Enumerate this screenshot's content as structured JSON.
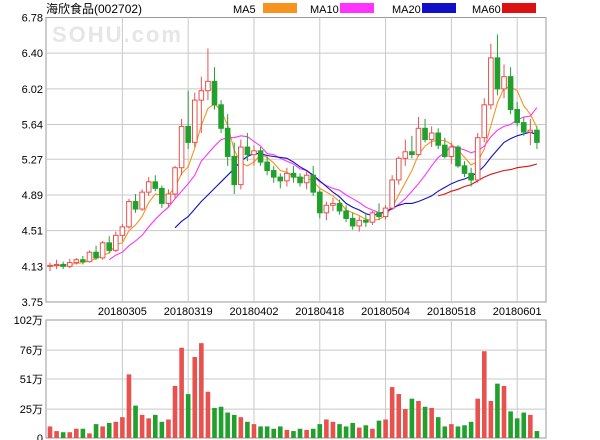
{
  "title": "海欣食品(002702)",
  "watermark": "SOHU.com",
  "colors": {
    "up": "#e8524e",
    "down": "#22a02e",
    "grid": "#c8c8c8",
    "frame": "#9a9a9a",
    "ma5": "#f7931e",
    "ma10": "#ff33ff",
    "ma20": "#1010c8",
    "ma60": "#dd1111"
  },
  "legend": [
    "MA5",
    "MA10",
    "MA20",
    "MA60"
  ],
  "price_axis": {
    "ticks": [
      "6.78",
      "6.40",
      "6.02",
      "5.64",
      "5.27",
      "4.89",
      "4.51",
      "4.13",
      "3.75"
    ],
    "min": 3.75,
    "max": 6.78
  },
  "date_labels": [
    {
      "label": "20180305",
      "index": 11
    },
    {
      "label": "20180319",
      "index": 21
    },
    {
      "label": "20180402",
      "index": 31
    },
    {
      "label": "20180418",
      "index": 41
    },
    {
      "label": "20180504",
      "index": 51
    },
    {
      "label": "20180518",
      "index": 61
    },
    {
      "label": "20180601",
      "index": 71
    }
  ],
  "volume_axis": {
    "ticks": [
      "102万",
      "76万",
      "51万",
      "25万",
      "0"
    ],
    "max": 102,
    "unit": "万"
  },
  "chart_data": {
    "type": "candlestick",
    "ohlc": [
      [
        4.13,
        4.17,
        4.08,
        4.14
      ],
      [
        4.14,
        4.2,
        4.1,
        4.15
      ],
      [
        4.15,
        4.18,
        4.1,
        4.13
      ],
      [
        4.13,
        4.21,
        4.11,
        4.17
      ],
      [
        4.17,
        4.22,
        4.15,
        4.2
      ],
      [
        4.2,
        4.24,
        4.15,
        4.18
      ],
      [
        4.18,
        4.3,
        4.17,
        4.28
      ],
      [
        4.28,
        4.35,
        4.2,
        4.22
      ],
      [
        4.22,
        4.4,
        4.2,
        4.38
      ],
      [
        4.38,
        4.45,
        4.27,
        4.3
      ],
      [
        4.3,
        4.5,
        4.28,
        4.46
      ],
      [
        4.46,
        4.58,
        4.4,
        4.55
      ],
      [
        4.55,
        4.85,
        4.53,
        4.82
      ],
      [
        4.82,
        4.9,
        4.7,
        4.74
      ],
      [
        4.74,
        4.95,
        4.72,
        4.92
      ],
      [
        4.92,
        5.08,
        4.88,
        5.03
      ],
      [
        5.03,
        5.1,
        4.93,
        4.96
      ],
      [
        4.96,
        4.99,
        4.75,
        4.8
      ],
      [
        4.8,
        4.95,
        4.76,
        4.9
      ],
      [
        4.9,
        5.2,
        4.85,
        5.18
      ],
      [
        5.18,
        5.7,
        5.1,
        5.62
      ],
      [
        5.62,
        6.0,
        5.38,
        5.45
      ],
      [
        5.45,
        5.98,
        5.4,
        5.9
      ],
      [
        5.9,
        6.15,
        5.55,
        6.0
      ],
      [
        6.0,
        6.45,
        5.9,
        6.1
      ],
      [
        6.1,
        6.25,
        5.8,
        5.85
      ],
      [
        5.85,
        5.9,
        5.55,
        5.6
      ],
      [
        5.6,
        5.75,
        5.2,
        5.3
      ],
      [
        5.3,
        5.45,
        4.9,
        5.0
      ],
      [
        5.0,
        5.48,
        4.95,
        5.4
      ],
      [
        5.4,
        5.55,
        5.25,
        5.32
      ],
      [
        5.32,
        5.42,
        5.2,
        5.36
      ],
      [
        5.36,
        5.4,
        5.2,
        5.24
      ],
      [
        5.24,
        5.3,
        5.1,
        5.15
      ],
      [
        5.15,
        5.2,
        5.02,
        5.08
      ],
      [
        5.08,
        5.12,
        4.96,
        5.04
      ],
      [
        5.04,
        5.18,
        4.98,
        5.12
      ],
      [
        5.12,
        5.2,
        5.02,
        5.08
      ],
      [
        5.08,
        5.12,
        4.98,
        5.02
      ],
      [
        5.02,
        5.14,
        4.95,
        5.1
      ],
      [
        5.1,
        5.2,
        4.88,
        4.92
      ],
      [
        4.92,
        4.95,
        4.64,
        4.7
      ],
      [
        4.7,
        4.82,
        4.62,
        4.78
      ],
      [
        4.78,
        4.86,
        4.72,
        4.8
      ],
      [
        4.8,
        4.84,
        4.68,
        4.72
      ],
      [
        4.72,
        4.78,
        4.6,
        4.64
      ],
      [
        4.64,
        4.7,
        4.52,
        4.56
      ],
      [
        4.56,
        4.66,
        4.5,
        4.62
      ],
      [
        4.62,
        4.7,
        4.55,
        4.6
      ],
      [
        4.6,
        4.72,
        4.57,
        4.7
      ],
      [
        4.7,
        4.8,
        4.62,
        4.66
      ],
      [
        4.66,
        4.78,
        4.63,
        4.75
      ],
      [
        4.75,
        5.1,
        4.73,
        5.05
      ],
      [
        5.05,
        5.3,
        5.0,
        5.28
      ],
      [
        5.28,
        5.48,
        5.2,
        5.35
      ],
      [
        5.35,
        5.52,
        5.28,
        5.32
      ],
      [
        5.32,
        5.72,
        5.3,
        5.6
      ],
      [
        5.6,
        5.7,
        5.45,
        5.48
      ],
      [
        5.48,
        5.62,
        5.4,
        5.55
      ],
      [
        5.55,
        5.6,
        5.38,
        5.42
      ],
      [
        5.42,
        5.5,
        5.28,
        5.3
      ],
      [
        5.3,
        5.45,
        5.22,
        5.4
      ],
      [
        5.4,
        5.42,
        5.18,
        5.2
      ],
      [
        5.2,
        5.25,
        5.08,
        5.12
      ],
      [
        5.12,
        5.18,
        4.98,
        5.05
      ],
      [
        5.05,
        5.55,
        5.02,
        5.5
      ],
      [
        5.5,
        5.92,
        5.45,
        5.85
      ],
      [
        5.85,
        6.5,
        5.8,
        6.35
      ],
      [
        6.35,
        6.6,
        5.95,
        6.02
      ],
      [
        6.02,
        6.28,
        5.92,
        6.15
      ],
      [
        6.15,
        6.25,
        5.75,
        5.8
      ],
      [
        5.8,
        5.88,
        5.62,
        5.66
      ],
      [
        5.66,
        5.72,
        5.52,
        5.56
      ],
      [
        5.56,
        5.7,
        5.42,
        5.58
      ],
      [
        5.58,
        5.62,
        5.38,
        5.45
      ]
    ],
    "volume": [
      10,
      6,
      5,
      5,
      8,
      8,
      4,
      12,
      10,
      13,
      14,
      18,
      55,
      28,
      20,
      17,
      20,
      14,
      16,
      45,
      78,
      38,
      70,
      82,
      40,
      26,
      27,
      22,
      20,
      18,
      14,
      12,
      10,
      10,
      8,
      10,
      7,
      6,
      8,
      7,
      8,
      12,
      16,
      14,
      12,
      10,
      13,
      9,
      11,
      8,
      15,
      16,
      44,
      38,
      25,
      34,
      32,
      27,
      26,
      18,
      10,
      12,
      10,
      11,
      14,
      34,
      75,
      32,
      47,
      45,
      23,
      17,
      22,
      20,
      6
    ],
    "ma": [
      {
        "name": "MA5",
        "values": [
          4.13,
          4.14,
          4.14,
          4.15,
          4.16,
          4.17,
          4.19,
          4.21,
          4.25,
          4.27,
          4.36,
          4.38,
          4.51,
          4.57,
          4.66,
          4.81,
          4.9,
          4.89,
          4.89,
          4.97,
          5.12,
          5.19,
          5.39,
          5.63,
          5.81,
          5.86,
          5.79,
          5.63,
          5.37,
          5.23,
          5.2,
          5.24,
          5.32,
          5.29,
          5.23,
          5.15,
          5.13,
          5.09,
          5.07,
          5.07,
          5.04,
          4.96,
          4.92,
          4.88,
          4.82,
          4.73,
          4.7,
          4.67,
          4.63,
          4.62,
          4.63,
          4.67,
          4.76,
          4.89,
          5.02,
          5.15,
          5.32,
          5.41,
          5.46,
          5.47,
          5.47,
          5.43,
          5.37,
          5.29,
          5.21,
          5.25,
          5.38,
          5.63,
          5.87,
          6.03,
          6.04,
          6.0,
          5.84,
          5.75,
          5.61
        ]
      },
      {
        "name": "MA10",
        "values": [
          null,
          null,
          null,
          null,
          null,
          null,
          null,
          null,
          null,
          4.2,
          4.25,
          4.28,
          4.35,
          4.4,
          4.46,
          4.55,
          4.63,
          4.7,
          4.76,
          4.85,
          4.93,
          5.01,
          5.1,
          5.25,
          5.33,
          5.41,
          5.48,
          5.5,
          5.5,
          5.52,
          5.51,
          5.46,
          5.41,
          5.33,
          5.32,
          5.28,
          5.25,
          5.22,
          5.17,
          5.15,
          5.09,
          5.03,
          4.99,
          4.96,
          4.94,
          4.89,
          4.85,
          4.81,
          4.76,
          4.73,
          4.7,
          4.71,
          4.74,
          4.79,
          4.85,
          4.93,
          5.01,
          5.1,
          5.2,
          5.29,
          5.34,
          5.41,
          5.39,
          5.37,
          5.34,
          5.36,
          5.41,
          5.51,
          5.58,
          5.62,
          5.64,
          5.69,
          5.72,
          5.73,
          5.82
        ]
      },
      {
        "name": "MA20",
        "values": [
          null,
          null,
          null,
          null,
          null,
          null,
          null,
          null,
          null,
          null,
          null,
          null,
          null,
          null,
          null,
          null,
          null,
          null,
          null,
          4.54,
          4.61,
          4.66,
          4.74,
          4.82,
          4.89,
          4.96,
          5.03,
          5.1,
          5.17,
          5.25,
          5.3,
          5.33,
          5.33,
          5.31,
          5.3,
          5.29,
          5.28,
          5.24,
          5.19,
          5.15,
          5.1,
          5.04,
          4.98,
          4.92,
          4.87,
          4.8,
          4.76,
          4.73,
          4.69,
          4.67,
          4.69,
          4.71,
          4.75,
          4.78,
          4.8,
          4.8,
          4.82,
          4.85,
          4.88,
          4.93,
          4.97,
          5.01,
          5.04,
          5.06,
          5.09,
          5.13,
          5.2,
          5.29,
          5.37,
          5.45,
          5.49,
          5.52,
          5.54,
          5.56,
          5.53
        ]
      },
      {
        "name": "MA60",
        "values": [
          null,
          null,
          null,
          null,
          null,
          null,
          null,
          null,
          null,
          null,
          null,
          null,
          null,
          null,
          null,
          null,
          null,
          null,
          null,
          null,
          null,
          null,
          null,
          null,
          null,
          null,
          null,
          null,
          null,
          null,
          null,
          null,
          null,
          null,
          null,
          null,
          null,
          null,
          null,
          null,
          null,
          null,
          null,
          null,
          null,
          null,
          null,
          null,
          null,
          null,
          null,
          null,
          null,
          null,
          null,
          null,
          null,
          null,
          null,
          4.88,
          4.9,
          4.93,
          4.95,
          4.98,
          5.0,
          5.04,
          5.08,
          5.11,
          5.13,
          5.15,
          5.16,
          5.18,
          5.19,
          5.2,
          5.22
        ]
      }
    ]
  }
}
